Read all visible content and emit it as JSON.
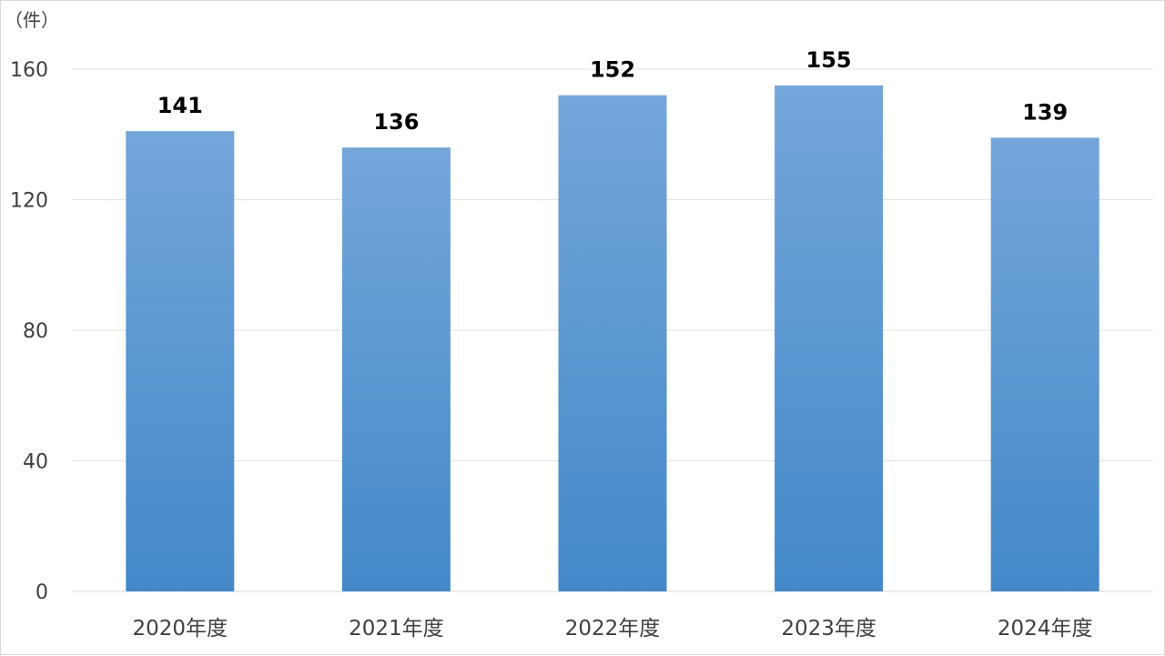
{
  "chart_data": {
    "type": "bar",
    "unit_label": "（件）",
    "categories": [
      "2020年度",
      "2021年度",
      "2022年度",
      "2023年度",
      "2024年度"
    ],
    "values": [
      141,
      136,
      152,
      155,
      139
    ],
    "ylim": [
      0,
      160
    ],
    "yticks": [
      0,
      40,
      80,
      120,
      160
    ],
    "grid": true,
    "legend": "none",
    "colors": {
      "bar_top": "#74a6da",
      "bar_bottom": "#4389c9"
    }
  }
}
